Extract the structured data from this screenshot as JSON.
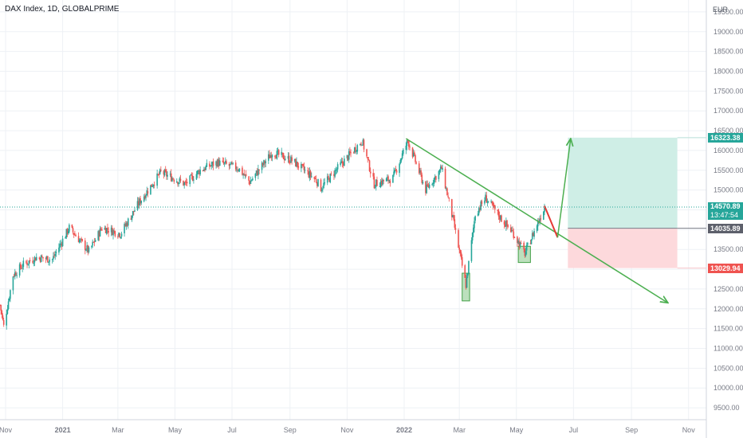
{
  "title": "DAX Index, 1D, GLOBALPRIME",
  "currency": "EUR",
  "colors": {
    "up": "#26a69a",
    "down": "#ef5350",
    "grid": "#eef1f5",
    "axis_text": "#787b86",
    "trendline": "#4caf50",
    "red_arrow": "#e53935",
    "target_zone": "#cfeee6",
    "stop_zone": "#fdd9dc",
    "demand_box": "#a5d6a7"
  },
  "price_tags": {
    "target": "16323.38",
    "current": "14570.89",
    "countdown": "13:47:54",
    "entry": "14035.89",
    "stop": "13029.94"
  },
  "chart_data": {
    "type": "candlestick",
    "symbol": "DAX Index",
    "interval": "1D",
    "source": "GLOBALPRIME",
    "ylim": [
      9200,
      19800
    ],
    "y_ticks": [
      9500,
      10000,
      10500,
      11000,
      11500,
      12000,
      12500,
      13000,
      13500,
      14000,
      14500,
      15000,
      15500,
      16000,
      16500,
      17000,
      17500,
      18000,
      18500,
      19000,
      19500
    ],
    "y_tick_labels": [
      "9500.00",
      "10000.00",
      "10500.00",
      "11000.00",
      "11500.00",
      "12000.00",
      "12500.00",
      "13000.00",
      "13500.00",
      "14000.00",
      "14500.00",
      "15000.00",
      "15500.00",
      "16000.00",
      "16500.00",
      "17000.00",
      "17500.00",
      "18000.00",
      "18500.00",
      "19000.00",
      "19500.00"
    ],
    "x_range": [
      "2020-10-26",
      "2022-11-20"
    ],
    "x_ticks": [
      {
        "date": "2020-11-01",
        "label": "Nov"
      },
      {
        "date": "2021-01-01",
        "label": "2021"
      },
      {
        "date": "2021-03-01",
        "label": "Mar"
      },
      {
        "date": "2021-05-01",
        "label": "May"
      },
      {
        "date": "2021-07-01",
        "label": "Jul"
      },
      {
        "date": "2021-09-01",
        "label": "Sep"
      },
      {
        "date": "2021-11-01",
        "label": "Nov"
      },
      {
        "date": "2022-01-01",
        "label": "2022"
      },
      {
        "date": "2022-03-01",
        "label": "Mar"
      },
      {
        "date": "2022-05-01",
        "label": "May"
      },
      {
        "date": "2022-07-01",
        "label": "Jul"
      },
      {
        "date": "2022-09-01",
        "label": "Sep"
      },
      {
        "date": "2022-11-01",
        "label": "Nov"
      }
    ],
    "price_path": [
      [
        "2020-10-26",
        12100
      ],
      [
        "2020-10-30",
        11560
      ],
      [
        "2020-11-09",
        12850
      ],
      [
        "2020-11-20",
        13120
      ],
      [
        "2020-12-04",
        13300
      ],
      [
        "2020-12-21",
        13250
      ],
      [
        "2021-01-08",
        14050
      ],
      [
        "2021-01-29",
        13450
      ],
      [
        "2021-02-12",
        14050
      ],
      [
        "2021-03-04",
        13900
      ],
      [
        "2021-03-24",
        14700
      ],
      [
        "2021-04-16",
        15450
      ],
      [
        "2021-05-12",
        15150
      ],
      [
        "2021-05-28",
        15500
      ],
      [
        "2021-06-15",
        15700
      ],
      [
        "2021-07-08",
        15550
      ],
      [
        "2021-07-20",
        15200
      ],
      [
        "2021-08-13",
        15950
      ],
      [
        "2021-09-03",
        15750
      ],
      [
        "2021-09-29",
        15250
      ],
      [
        "2021-10-04",
        15050
      ],
      [
        "2021-10-22",
        15550
      ],
      [
        "2021-11-17",
        16250
      ],
      [
        "2021-11-30",
        15150
      ],
      [
        "2021-12-20",
        15300
      ],
      [
        "2022-01-05",
        16250
      ],
      [
        "2022-01-24",
        15000
      ],
      [
        "2022-02-10",
        15550
      ],
      [
        "2022-02-24",
        14050
      ],
      [
        "2022-03-08",
        12600
      ],
      [
        "2022-03-18",
        14400
      ],
      [
        "2022-03-29",
        14800
      ],
      [
        "2022-04-14",
        14300
      ],
      [
        "2022-04-28",
        13900
      ],
      [
        "2022-05-10",
        13400
      ],
      [
        "2022-05-19",
        13900
      ],
      [
        "2022-05-31",
        14570
      ]
    ],
    "annotations": [
      {
        "type": "trendline",
        "from": [
          "2022-01-03",
          16300
        ],
        "to": [
          "2022-10-10",
          12150
        ],
        "color": "#4caf50",
        "arrowhead": true
      },
      {
        "type": "arrow",
        "from": [
          "2022-05-31",
          14600
        ],
        "to": [
          "2022-06-14",
          13800
        ],
        "color": "#e53935"
      },
      {
        "type": "arrow",
        "from": [
          "2022-06-14",
          13800
        ],
        "to": [
          "2022-06-28",
          16300
        ],
        "color": "#4caf50",
        "arrowhead": true
      },
      {
        "type": "long_position",
        "start": "2022-06-25",
        "end": "2022-10-20",
        "entry": 14035.89,
        "target": 16323.38,
        "stop": 13029.94
      },
      {
        "type": "box",
        "start": "2022-03-04",
        "end": "2022-03-12",
        "top": 12900,
        "bottom": 12200,
        "color": "#a5d6a7"
      },
      {
        "type": "box",
        "start": "2022-05-03",
        "end": "2022-05-16",
        "top": 13580,
        "bottom": 13170,
        "color": "#a5d6a7"
      }
    ],
    "last_price": 14570.89,
    "grid": true,
    "legend": "none"
  }
}
